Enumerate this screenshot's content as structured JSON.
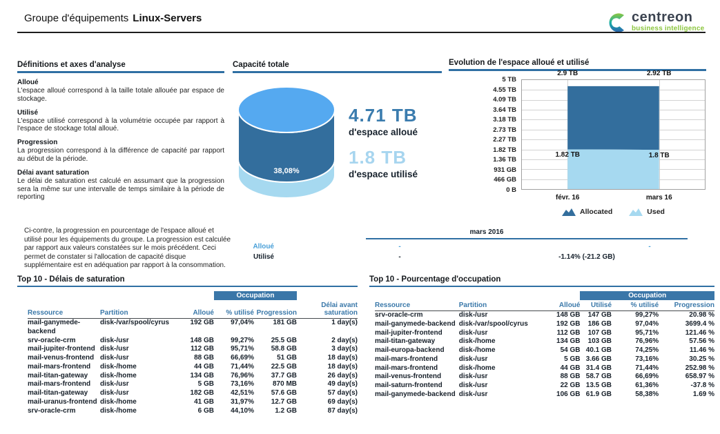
{
  "header": {
    "title_prefix": "Groupe d'équipements",
    "title_name": "Linux-Servers",
    "logo": {
      "brand": "centreon",
      "tagline": "business intelligence"
    }
  },
  "definitions": {
    "title": "Définitions et axes d'analyse",
    "items": [
      {
        "term": "Alloué",
        "text": "L'espace alloué correspond à la taille totale allouée par espace de stockage."
      },
      {
        "term": "Utilisé",
        "text": "L'espace utilisé correspond à la volumétrie occupée par rapport à l'espace de stockage total alloué."
      },
      {
        "term": "Progression",
        "text": "La progression correspond à la différence de capacité par rapport au début de la période."
      },
      {
        "term": "Délai avant saturation",
        "text": "Le délai de saturation est calculé en assumant que la progression sera la même sur une intervalle de temps similaire à la période de reporting"
      }
    ]
  },
  "chart_data": [
    {
      "type": "pie",
      "title": "Capacité totale",
      "percent_used": 38.08,
      "percent_used_label": "38,08%",
      "allocated_label": "4.71 TB",
      "allocated_caption": "d'espace alloué",
      "used_label": "1.8 TB",
      "used_caption": "d'espace utilisé"
    },
    {
      "type": "area",
      "stacked": true,
      "title": "Evolution de l'espace alloué et utilisé",
      "categories": [
        "févr. 16",
        "mars 16"
      ],
      "series": [
        {
          "name": "Allocated",
          "values_tb": [
            2.9,
            2.92
          ],
          "labels": [
            "2.9 TB",
            "2.92 TB"
          ],
          "color": "#336e9d"
        },
        {
          "name": "Used",
          "values_tb": [
            1.82,
            1.8
          ],
          "labels": [
            "1.82 TB",
            "1.8 TB"
          ],
          "color": "#a6d9f0"
        }
      ],
      "y_ticks": [
        "5 TB",
        "4.55 TB",
        "4.09 TB",
        "3.64 TB",
        "3.18 TB",
        "2.73 TB",
        "2.27 TB",
        "1.82 TB",
        "1.36 TB",
        "931 GB",
        "466 GB",
        "0 B"
      ],
      "ylim_tb": [
        0,
        5
      ],
      "legend": [
        "Allocated",
        "Used"
      ],
      "legend_position": "bottom",
      "grid": true
    }
  ],
  "progression_note": "Ci-contre, la progression en pourcentage de l'espace alloué et utilisé pour les équipements du groupe. La progression est calculée par rapport aux valeurs constatées sur le mois précédent. Ceci permet de constater si l'allocation de capacité disque supplémentaire est en adéquation par rapport à la consommation.",
  "progression_table": {
    "period": "mars 2016",
    "rows": [
      {
        "label": "Alloué",
        "values": [
          "-",
          "-"
        ]
      },
      {
        "label": "Utilisé",
        "values": [
          "-",
          "-1.14% (-21.2 GB)"
        ]
      }
    ]
  },
  "saturation_table": {
    "title": "Top 10 - Délais de saturation",
    "banner": "Occupation",
    "columns": [
      "Ressource",
      "Partition",
      "Alloué",
      "% utilisé",
      "Progression",
      "Délai avant saturation"
    ],
    "rows": [
      [
        "mail-ganymede-\nbackend",
        "disk-/var/spool/cyrus",
        "192 GB",
        "97,04%",
        "181 GB",
        "1 day(s)"
      ],
      [
        "srv-oracle-crm",
        "disk-/usr",
        "148 GB",
        "99,27%",
        "25.5 GB",
        "2 day(s)"
      ],
      [
        "mail-jupiter-frontend",
        "disk-/usr",
        "112 GB",
        "95,71%",
        "58.8 GB",
        "3 day(s)"
      ],
      [
        "mail-venus-frontend",
        "disk-/usr",
        "88 GB",
        "66,69%",
        "51 GB",
        "18 day(s)"
      ],
      [
        "mail-mars-frontend",
        "disk-/home",
        "44 GB",
        "71,44%",
        "22.5 GB",
        "18 day(s)"
      ],
      [
        "mail-titan-gateway",
        "disk-/home",
        "134 GB",
        "76,96%",
        "37.7 GB",
        "26 day(s)"
      ],
      [
        "mail-mars-frontend",
        "disk-/usr",
        "5 GB",
        "73,16%",
        "870 MB",
        "49 day(s)"
      ],
      [
        "mail-titan-gateway",
        "disk-/usr",
        "182 GB",
        "42,51%",
        "57.6 GB",
        "57 day(s)"
      ],
      [
        "mail-uranus-frontend",
        "disk-/home",
        "41 GB",
        "31,97%",
        "12.7 GB",
        "69 day(s)"
      ],
      [
        "srv-oracle-crm",
        "disk-/home",
        "6 GB",
        "44,10%",
        "1.2 GB",
        "87 day(s)"
      ]
    ]
  },
  "occupation_table": {
    "title": "Top 10 - Pourcentage d'occupation",
    "banner": "Occupation",
    "columns": [
      "Ressource",
      "Partition",
      "Alloué",
      "Utilisé",
      "% utilisé",
      "Progression"
    ],
    "rows": [
      [
        "srv-oracle-crm",
        "disk-/usr",
        "148 GB",
        "147 GB",
        "99,27%",
        "20.98 %"
      ],
      [
        "mail-ganymede-backend",
        "disk-/var/spool/cyrus",
        "192 GB",
        "186 GB",
        "97,04%",
        "3699.4 %"
      ],
      [
        "mail-jupiter-frontend",
        "disk-/usr",
        "112 GB",
        "107 GB",
        "95,71%",
        "121.46 %"
      ],
      [
        "mail-titan-gateway",
        "disk-/home",
        "134 GB",
        "103 GB",
        "76,96%",
        "57.56 %"
      ],
      [
        "mail-europa-backend",
        "disk-/home",
        "54 GB",
        "40.1 GB",
        "74,25%",
        "11.46 %"
      ],
      [
        "mail-mars-frontend",
        "disk-/usr",
        "5 GB",
        "3.66 GB",
        "73,16%",
        "30.25 %"
      ],
      [
        "mail-mars-frontend",
        "disk-/home",
        "44 GB",
        "31.4 GB",
        "71,44%",
        "252.98 %"
      ],
      [
        "mail-venus-frontend",
        "disk-/usr",
        "88 GB",
        "58.7 GB",
        "66,69%",
        "658.97 %"
      ],
      [
        "mail-saturn-frontend",
        "disk-/usr",
        "22 GB",
        "13.5 GB",
        "61,36%",
        "-37.8 %"
      ],
      [
        "mail-ganymede-backend",
        "disk-/usr",
        "106 GB",
        "61.9 GB",
        "58,38%",
        "1.69 %"
      ]
    ]
  },
  "colors": {
    "accent_blue": "#3a76a8",
    "rule_blue": "#2f6fa3",
    "allocated_dark": "#336e9d",
    "used_light": "#a6d9f0",
    "cylinder_top": "#55a9f0",
    "value_blue": "#3b7cae",
    "value_light_blue": "#a7d5ef",
    "header_text_blue": "#3a78a9",
    "mini_blue": "#4aa0d8",
    "logo_green": "#8cc63f",
    "logo_dark": "#3b4350"
  }
}
